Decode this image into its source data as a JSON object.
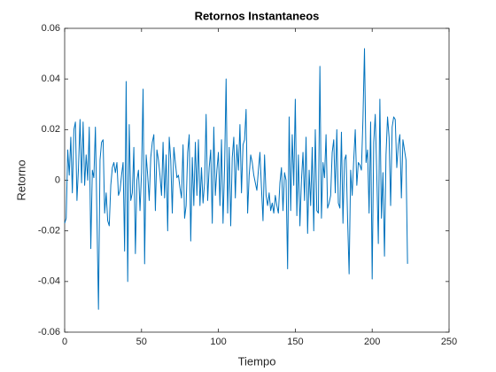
{
  "chart_data": {
    "type": "line",
    "title": "Retornos Instantaneos",
    "x_label": "Tiempo",
    "y_label": "Retorno",
    "color": "#0072bd",
    "xlim": [
      0,
      250
    ],
    "xticks": [
      0,
      50,
      100,
      150,
      200,
      250
    ],
    "ylim": [
      -0.06,
      0.06
    ],
    "yticks": [
      -0.06,
      -0.04,
      -0.02,
      0,
      0.02,
      0.04,
      0.06
    ],
    "grid": false,
    "x": [
      0,
      1,
      2,
      3,
      4,
      5,
      6,
      7,
      8,
      9,
      10,
      11,
      12,
      13,
      14,
      15,
      16,
      17,
      18,
      19,
      20,
      21,
      22,
      23,
      24,
      25,
      26,
      27,
      28,
      29,
      30,
      31,
      32,
      33,
      34,
      35,
      36,
      37,
      38,
      39,
      40,
      41,
      42,
      43,
      44,
      45,
      46,
      47,
      48,
      49,
      50,
      51,
      52,
      53,
      54,
      55,
      56,
      57,
      58,
      59,
      60,
      61,
      62,
      63,
      64,
      65,
      66,
      67,
      68,
      69,
      70,
      71,
      72,
      73,
      74,
      75,
      76,
      77,
      78,
      79,
      80,
      81,
      82,
      83,
      84,
      85,
      86,
      87,
      88,
      89,
      90,
      91,
      92,
      93,
      94,
      95,
      96,
      97,
      98,
      99,
      100,
      101,
      102,
      103,
      104,
      105,
      106,
      107,
      108,
      109,
      110,
      111,
      112,
      113,
      114,
      115,
      116,
      117,
      118,
      119,
      120,
      121,
      122,
      123,
      124,
      125,
      126,
      127,
      128,
      129,
      130,
      131,
      132,
      133,
      134,
      135,
      136,
      137,
      138,
      139,
      140,
      141,
      142,
      143,
      144,
      145,
      146,
      147,
      148,
      149,
      150,
      151,
      152,
      153,
      154,
      155,
      156,
      157,
      158,
      159,
      160,
      161,
      162,
      163,
      164,
      165,
      166,
      167,
      168,
      169,
      170,
      171,
      172,
      173,
      174,
      175,
      176,
      177,
      178,
      179,
      180,
      181,
      182,
      183,
      184,
      185,
      186,
      187,
      188,
      189,
      190,
      191,
      192,
      193,
      194,
      195,
      196,
      197,
      198,
      199,
      200,
      201,
      202,
      203,
      204,
      205,
      206,
      207,
      208,
      209,
      210,
      211,
      212,
      213,
      214,
      215,
      216,
      217,
      218,
      219,
      220,
      221,
      222,
      223
    ],
    "values": [
      -0.017,
      -0.015,
      0.012,
      0.002,
      0.017,
      -0.005,
      0.02,
      0.023,
      -0.008,
      0.005,
      0.024,
      -0.001,
      0.023,
      -0.002,
      0.01,
      0.0,
      0.021,
      -0.027,
      0.004,
      0.001,
      0.021,
      -0.015,
      -0.051,
      0.008,
      0.015,
      0.016,
      -0.013,
      -0.005,
      -0.016,
      -0.018,
      -0.002,
      0.005,
      0.007,
      0.003,
      0.007,
      -0.006,
      -0.004,
      0.002,
      0.007,
      -0.028,
      0.039,
      -0.04,
      0.022,
      -0.008,
      -0.005,
      0.013,
      -0.029,
      0.0,
      0.004,
      -0.012,
      0.003,
      0.036,
      -0.033,
      0.01,
      0.002,
      -0.008,
      0.009,
      0.015,
      0.018,
      -0.012,
      0.012,
      0.008,
      0.002,
      -0.006,
      0.015,
      -0.007,
      0.01,
      -0.02,
      0.017,
      0.008,
      -0.013,
      0.013,
      0.007,
      0.001,
      0.002,
      -0.003,
      -0.007,
      0.014,
      -0.015,
      -0.01,
      0.011,
      0.018,
      -0.024,
      0.009,
      -0.01,
      0.015,
      -0.006,
      0.016,
      -0.01,
      0.005,
      -0.009,
      -0.001,
      0.026,
      -0.008,
      0.005,
      0.012,
      -0.017,
      0.021,
      -0.006,
      0.004,
      0.011,
      -0.01,
      0.016,
      -0.017,
      0.005,
      0.04,
      -0.013,
      0.013,
      -0.018,
      0.009,
      0.017,
      -0.007,
      0.014,
      0.004,
      0.022,
      -0.005,
      0.014,
      0.016,
      0.028,
      -0.013,
      0.002,
      0.01,
      0.007,
      0.002,
      -0.001,
      -0.004,
      0.004,
      0.011,
      -0.003,
      -0.016,
      0.01,
      -0.006,
      -0.01,
      -0.005,
      -0.012,
      -0.009,
      -0.013,
      -0.006,
      -0.01,
      -0.013,
      -0.001,
      0.005,
      -0.012,
      0.003,
      0.0,
      -0.035,
      0.025,
      -0.012,
      0.018,
      -0.002,
      0.032,
      -0.014,
      0.01,
      -0.018,
      0.0,
      0.011,
      -0.008,
      0.017,
      -0.021,
      0.004,
      -0.01,
      0.013,
      -0.02,
      0.02,
      -0.012,
      -0.013,
      0.045,
      -0.015,
      0.007,
      0.001,
      0.018,
      -0.011,
      -0.009,
      -0.006,
      0.011,
      0.016,
      -0.005,
      0.02,
      -0.009,
      -0.011,
      0.019,
      -0.017,
      0.008,
      0.01,
      -0.015,
      -0.037,
      0.004,
      -0.006,
      0.008,
      0.02,
      -0.002,
      0.007,
      0.006,
      0.004,
      0.024,
      0.052,
      0.007,
      0.012,
      -0.013,
      0.023,
      -0.039,
      0.015,
      0.026,
      0.002,
      -0.025,
      0.032,
      -0.015,
      0.003,
      -0.03,
      0.01,
      0.025,
      0.017,
      -0.01,
      0.021,
      0.025,
      0.024,
      0.005,
      0.014,
      0.018,
      -0.007,
      0.016,
      0.012,
      0.008,
      -0.033
    ]
  }
}
